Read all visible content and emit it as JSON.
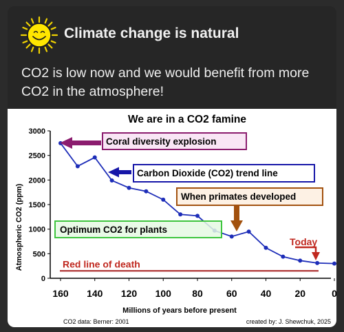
{
  "header": {
    "title": "Climate change is natural",
    "body": "CO2 is low now and we would benefit from more CO2 in the atmosphere!",
    "logo_icon": "smiling-sun-icon"
  },
  "colors": {
    "card": "#262626",
    "coral_box_fill": "#f9e6f5",
    "coral_box_border": "#8b1c6e",
    "primates_box_fill": "#fdf1e4",
    "primates_box_border": "#a2510e",
    "optimum_box_fill": "#e5f9e3",
    "optimum_box_border": "#3ec53e",
    "trend_box_border": "#1616a8",
    "line_blue": "#1d2db8",
    "death_red": "#a51c1c"
  },
  "chart_data": {
    "type": "line",
    "title": "We are in a CO2 famine",
    "xlabel": "Millions of years before present",
    "ylabel": "Atmospheric CO2 (ppm)",
    "x_reversed": true,
    "xlim": [
      160,
      0
    ],
    "ylim": [
      0,
      3000
    ],
    "xticks": [
      160,
      140,
      120,
      100,
      80,
      60,
      40,
      20,
      0
    ],
    "yticks": [
      0,
      500,
      1000,
      1500,
      2000,
      2500,
      3000
    ],
    "series": [
      {
        "x": [
          160,
          150,
          140,
          130,
          120,
          110,
          100,
          90,
          80,
          70,
          60,
          50,
          40,
          30,
          20,
          10,
          0
        ],
        "y": [
          2750,
          2280,
          2460,
          1990,
          1840,
          1770,
          1600,
          1300,
          1270,
          970,
          850,
          950,
          620,
          440,
          360,
          310,
          300
        ]
      }
    ],
    "death_line_value": 150,
    "annotations": {
      "coral": "Coral diversity explosion",
      "trend": "Carbon Dioxide (CO2) trend line",
      "primates": "When primates developed",
      "optimum": "Optimum CO2 for plants",
      "today": "Today",
      "death": "Red line of death"
    },
    "footnote_left": "CO2 data: Berner: 2001",
    "footnote_right": "created by: J. Shewchuk, 2025"
  }
}
